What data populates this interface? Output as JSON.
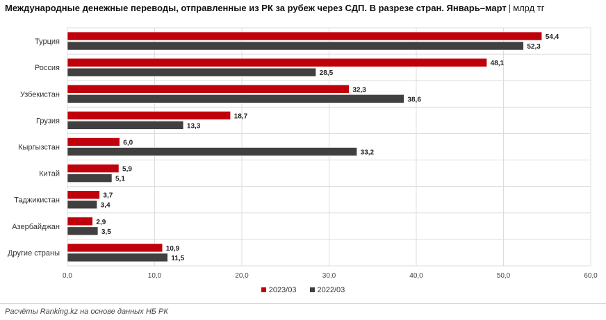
{
  "header": {
    "title": "Международные денежные переводы, отправленные из РК за рубеж через СДП. В разрезе стран. Январь–март",
    "separator": "|",
    "unit": "млрд тг"
  },
  "footer": {
    "source": "Расчёты Ranking.kz на основе данных НБ РК"
  },
  "colors": {
    "series_2023": "#c0000b",
    "series_2022": "#404040"
  },
  "chart_data": {
    "type": "bar",
    "orientation": "horizontal",
    "categories": [
      "Турция",
      "Россия",
      "Узбекистан",
      "Грузия",
      "Кыргызстан",
      "Китай",
      "Таджикистан",
      "Азербайджан",
      "Другие страны"
    ],
    "series": [
      {
        "name": "2023/03",
        "values": [
          54.4,
          48.1,
          32.3,
          18.7,
          6.0,
          5.9,
          3.7,
          2.9,
          10.9
        ]
      },
      {
        "name": "2022/03",
        "values": [
          52.3,
          28.5,
          38.6,
          13.3,
          33.2,
          5.1,
          3.4,
          3.5,
          11.5
        ]
      }
    ],
    "xlim": [
      0,
      60
    ],
    "xticks": [
      0,
      10,
      20,
      30,
      40,
      50,
      60
    ],
    "grid": true,
    "legend": "bottom"
  }
}
